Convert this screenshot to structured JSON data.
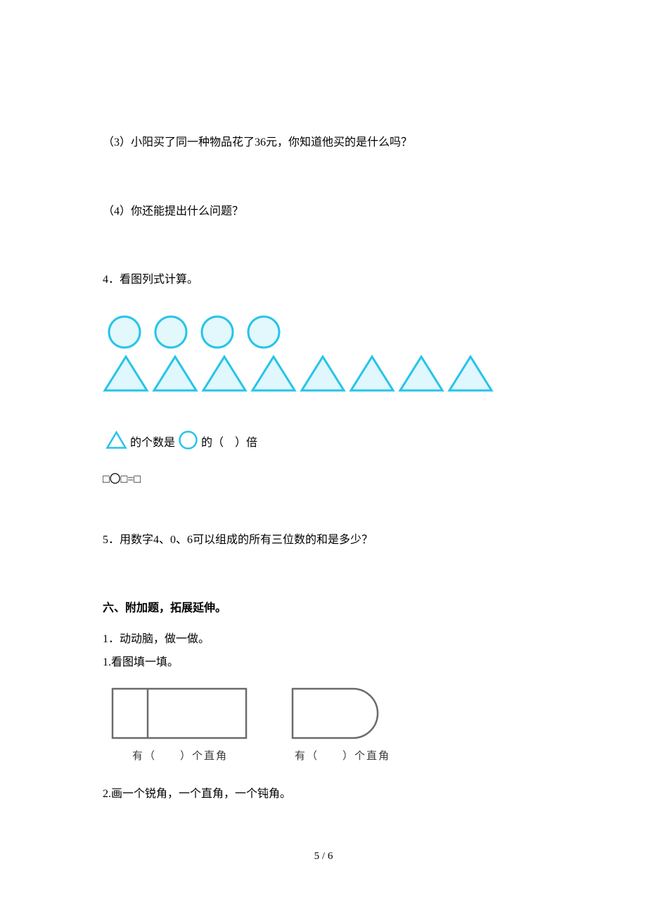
{
  "q3": "（3）小阳买了同一种物品花了36元，你知道他买的是什么吗？",
  "q4": "（4）你还能提出什么问题？",
  "q4_title": "4．看图列式计算。",
  "shapes": {
    "circle_count": 4,
    "triangle_count": 8,
    "circle_stroke": "#27c4e8",
    "circle_fill": "#e2f8fd",
    "triangle_stroke": "#27c4e8",
    "triangle_fill": "#dff7fd",
    "circle_radius": 22,
    "triangle_width": 60,
    "triangle_height": 48
  },
  "ratio": {
    "prefix": "的个数是",
    "suffix": "的（　）倍"
  },
  "equation": "□〇□=□",
  "q5": "5．用数字4、0、6可以组成的所有三位数的和是多少？",
  "section6_title": "六、附加题，拓展延伸。",
  "s6_line1": "1．动动脑，做一做。",
  "s6_line2": "1.看图填一填。",
  "figures": {
    "rect_stroke": "#6b6b6b",
    "rect_fill": "#ffffff",
    "caption1": "有（　　）个直角",
    "caption2": "有（　　）个直角"
  },
  "s6_line3": "2.画一个锐角，一个直角，一个钝角。",
  "page": "5 / 6"
}
